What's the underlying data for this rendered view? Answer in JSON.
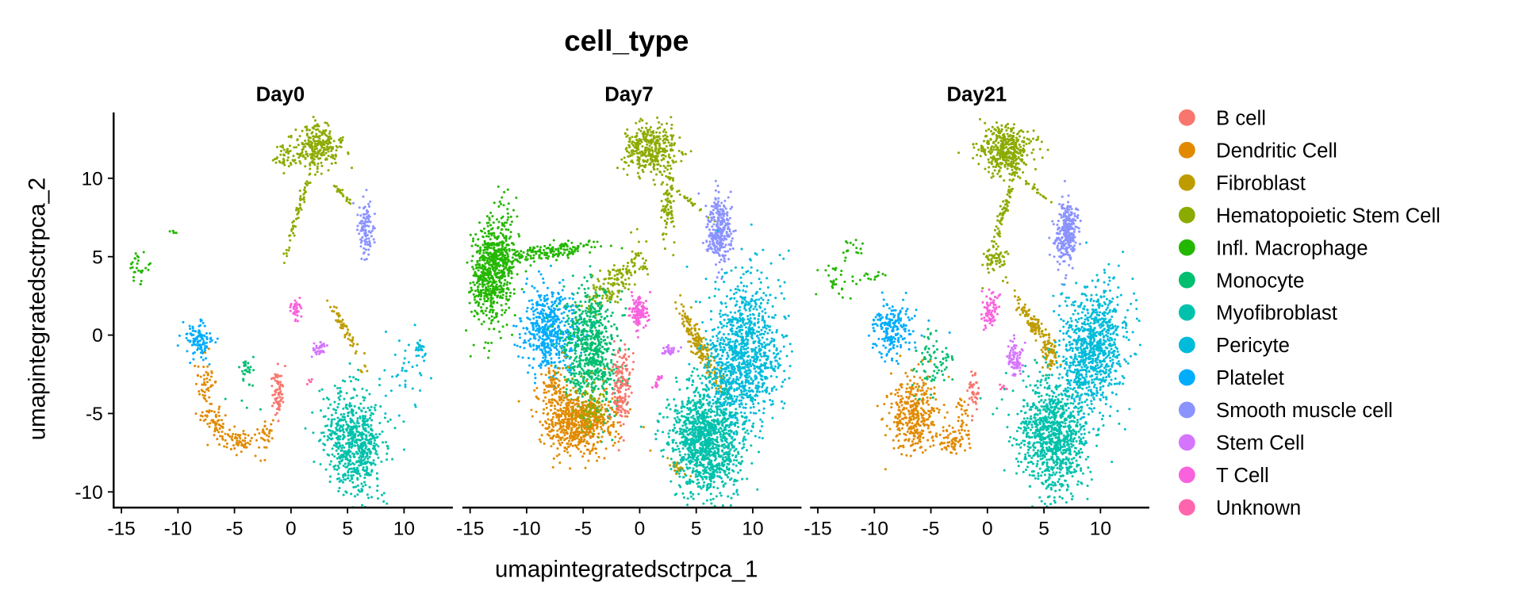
{
  "chart_data": {
    "type": "scatter",
    "title": "cell_type",
    "xlabel": "umapintegratedsctrpca_1",
    "ylabel": "umapintegratedsctrpca_2",
    "xlim": [
      -15.7,
      13.8
    ],
    "ylim": [
      -11.0,
      14.2
    ],
    "xticks": [
      "-15",
      "-10",
      "-5",
      "0",
      "5",
      "10"
    ],
    "xtick_values": [
      -15,
      -10,
      -5,
      0,
      5,
      10
    ],
    "yticks": [
      "-10",
      "-5",
      "0",
      "5",
      "10"
    ],
    "ytick_values": [
      -10,
      -5,
      0,
      5,
      10
    ],
    "grid": false,
    "legend_placement": "right",
    "legend": [
      {
        "label": "B cell",
        "color": "#F8766D"
      },
      {
        "label": "Dendritic Cell",
        "color": "#E18A00"
      },
      {
        "label": "Fibroblast",
        "color": "#BE9C00"
      },
      {
        "label": "Hematopoietic Stem Cell",
        "color": "#8CAB00"
      },
      {
        "label": "Infl. Macrophage",
        "color": "#24B700"
      },
      {
        "label": "Monocyte",
        "color": "#00BE70"
      },
      {
        "label": "Myofibroblast",
        "color": "#00C1AB"
      },
      {
        "label": "Pericyte",
        "color": "#00BBDA"
      },
      {
        "label": "Platelet",
        "color": "#00ACFC"
      },
      {
        "label": "Smooth muscle cell",
        "color": "#8B93FF"
      },
      {
        "label": "Stem Cell",
        "color": "#D575FE"
      },
      {
        "label": "T Cell",
        "color": "#F962DD"
      },
      {
        "label": "Unknown",
        "color": "#FF65AC"
      }
    ],
    "cluster_format": [
      "type_index",
      "center_x",
      "center_y",
      "sd_major",
      "sd_minor",
      "angle_deg",
      "n_points"
    ],
    "panels": [
      {
        "title": "Day0",
        "clusters": [
          [
            3,
            2.2,
            12.0,
            1.1,
            0.7,
            0,
            260
          ],
          [
            3,
            -0.5,
            11.5,
            0.6,
            0.5,
            0,
            40
          ],
          [
            3,
            0.6,
            7.8,
            1.6,
            0.12,
            67,
            60
          ],
          [
            3,
            4.5,
            9.0,
            0.9,
            0.08,
            -34,
            25
          ],
          [
            9,
            6.6,
            6.7,
            0.35,
            1.0,
            0,
            110
          ],
          [
            4,
            -13.3,
            4.2,
            0.6,
            0.6,
            0,
            30
          ],
          [
            4,
            -10.4,
            6.6,
            0.15,
            0.1,
            0,
            6
          ],
          [
            8,
            -8.2,
            -0.4,
            0.6,
            0.6,
            0,
            110
          ],
          [
            1,
            -7.6,
            -3.2,
            0.4,
            0.9,
            0,
            50
          ],
          [
            1,
            -6.5,
            -5.6,
            0.8,
            0.5,
            -30,
            60
          ],
          [
            1,
            -4.5,
            -6.8,
            0.9,
            0.4,
            0,
            60
          ],
          [
            1,
            -2.2,
            -6.3,
            0.4,
            0.6,
            0,
            30
          ],
          [
            5,
            -4.0,
            -2.0,
            0.3,
            0.3,
            0,
            25
          ],
          [
            5,
            -3.5,
            -3.5,
            0.8,
            0.6,
            0,
            8
          ],
          [
            0,
            -1.2,
            -3.6,
            0.25,
            0.9,
            0,
            70
          ],
          [
            11,
            0.4,
            1.6,
            0.3,
            0.4,
            0,
            35
          ],
          [
            10,
            2.4,
            -0.9,
            0.35,
            0.25,
            0,
            35
          ],
          [
            12,
            1.6,
            -3.0,
            0.2,
            0.1,
            40,
            5
          ],
          [
            2,
            4.5,
            0.8,
            0.9,
            0.2,
            -55,
            50
          ],
          [
            2,
            6.3,
            -2.0,
            0.2,
            0.6,
            0,
            8
          ],
          [
            6,
            5.6,
            -6.8,
            1.3,
            1.6,
            25,
            650
          ],
          [
            6,
            4.3,
            -3.8,
            0.15,
            0.3,
            0,
            8
          ],
          [
            7,
            11.5,
            -1.2,
            0.3,
            0.6,
            0,
            25
          ],
          [
            7,
            9.8,
            -2.5,
            1.0,
            1.3,
            0,
            35
          ]
        ]
      },
      {
        "title": "Day7",
        "clusters": [
          [
            4,
            -13.0,
            4.2,
            0.9,
            1.7,
            -10,
            700
          ],
          [
            4,
            -8.0,
            5.3,
            2.3,
            0.25,
            5,
            180
          ],
          [
            3,
            1.0,
            11.8,
            1.2,
            0.8,
            0,
            350
          ],
          [
            3,
            2.5,
            8.5,
            0.3,
            1.2,
            0,
            80
          ],
          [
            3,
            -2.3,
            3.3,
            1.5,
            0.5,
            30,
            150
          ],
          [
            3,
            0.0,
            5.5,
            0.3,
            1.0,
            20,
            15
          ],
          [
            3,
            4.5,
            8.5,
            1.0,
            0.08,
            -30,
            25
          ],
          [
            9,
            7.0,
            6.7,
            0.55,
            1.0,
            0,
            300
          ],
          [
            8,
            -8.0,
            0.2,
            1.3,
            1.3,
            0,
            500
          ],
          [
            5,
            -4.3,
            -1.0,
            1.2,
            2.0,
            0,
            700
          ],
          [
            1,
            -5.3,
            -5.6,
            1.6,
            1.0,
            0,
            600
          ],
          [
            1,
            -7.5,
            -3.5,
            0.6,
            0.9,
            0,
            100
          ],
          [
            3,
            -4.5,
            -4.5,
            0.8,
            0.8,
            0,
            80
          ],
          [
            0,
            -1.6,
            -3.2,
            0.4,
            1.1,
            0,
            150
          ],
          [
            11,
            0.0,
            1.4,
            0.4,
            0.5,
            0,
            120
          ],
          [
            11,
            1.5,
            -3.0,
            0.3,
            0.1,
            40,
            15
          ],
          [
            10,
            2.6,
            -1.0,
            0.4,
            0.15,
            0,
            30
          ],
          [
            2,
            5.4,
            -0.8,
            1.6,
            0.3,
            -55,
            200
          ],
          [
            2,
            3.6,
            -8.6,
            0.5,
            0.15,
            -30,
            30
          ],
          [
            7,
            9.2,
            -1.3,
            1.6,
            2.5,
            -10,
            1100
          ],
          [
            6,
            5.8,
            -6.8,
            1.5,
            1.8,
            25,
            1100
          ]
        ]
      },
      {
        "title": "Day21",
        "clusters": [
          [
            3,
            1.6,
            11.9,
            1.2,
            0.8,
            0,
            400
          ],
          [
            3,
            1.5,
            8.0,
            1.8,
            0.15,
            70,
            90
          ],
          [
            3,
            0.8,
            4.8,
            0.6,
            0.4,
            0,
            60
          ],
          [
            3,
            4.3,
            9.3,
            0.8,
            0.08,
            -30,
            20
          ],
          [
            9,
            7.0,
            6.5,
            0.5,
            1.0,
            0,
            280
          ],
          [
            4,
            -13.5,
            3.5,
            0.7,
            0.6,
            0,
            30
          ],
          [
            4,
            -11.8,
            5.5,
            0.5,
            0.4,
            0,
            15
          ],
          [
            4,
            -10.5,
            3.6,
            0.8,
            0.2,
            10,
            15
          ],
          [
            8,
            -8.3,
            0.4,
            0.9,
            0.9,
            0,
            200
          ],
          [
            5,
            -4.8,
            -1.8,
            1.0,
            1.0,
            0,
            80
          ],
          [
            1,
            -6.5,
            -5.0,
            1.1,
            1.2,
            -25,
            350
          ],
          [
            1,
            -3.2,
            -6.7,
            0.9,
            0.4,
            0,
            60
          ],
          [
            1,
            -2.3,
            -5.5,
            0.3,
            0.8,
            0,
            30
          ],
          [
            0,
            -1.2,
            -3.5,
            0.25,
            0.7,
            0,
            40
          ],
          [
            11,
            0.2,
            1.6,
            0.4,
            0.6,
            0,
            70
          ],
          [
            10,
            2.4,
            -1.5,
            0.35,
            0.6,
            0,
            80
          ],
          [
            12,
            1.3,
            -3.3,
            0.15,
            0.1,
            0,
            6
          ],
          [
            2,
            4.0,
            0.8,
            1.3,
            0.25,
            -45,
            120
          ],
          [
            2,
            5.4,
            -1.3,
            0.4,
            0.6,
            0,
            60
          ],
          [
            7,
            9.2,
            -1.0,
            1.4,
            2.2,
            -15,
            900
          ],
          [
            6,
            5.8,
            -6.5,
            1.5,
            1.8,
            25,
            900
          ]
        ]
      }
    ]
  }
}
